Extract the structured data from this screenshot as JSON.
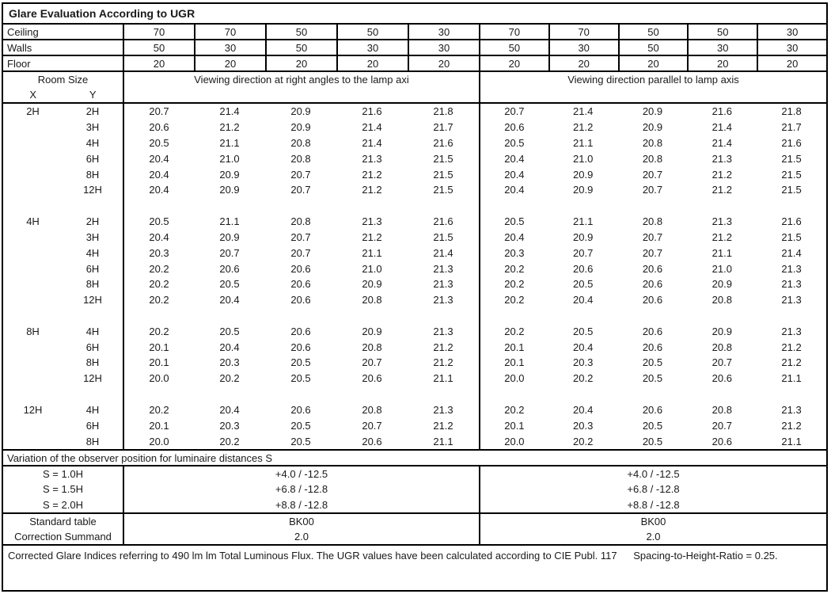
{
  "title": "Glare Evaluation According to UGR",
  "reflectance": {
    "rows": [
      {
        "label": "Ceiling",
        "values": [
          "70",
          "70",
          "50",
          "50",
          "30",
          "70",
          "70",
          "50",
          "50",
          "30"
        ]
      },
      {
        "label": "Walls",
        "values": [
          "50",
          "30",
          "50",
          "30",
          "30",
          "50",
          "30",
          "50",
          "30",
          "30"
        ]
      },
      {
        "label": "Floor",
        "values": [
          "20",
          "20",
          "20",
          "20",
          "20",
          "20",
          "20",
          "20",
          "20",
          "20"
        ]
      }
    ]
  },
  "header": {
    "room_size_label": "Room Size",
    "x_label": "X",
    "y_label": "Y",
    "left_title": "Viewing direction at right angles to the lamp axi",
    "right_title": "Viewing direction parallel to lamp axis"
  },
  "ugr_table": {
    "blocks": [
      {
        "x": "2H",
        "rows": [
          {
            "y": "2H",
            "left": [
              "20.7",
              "21.4",
              "20.9",
              "21.6",
              "21.8"
            ],
            "right": [
              "20.7",
              "21.4",
              "20.9",
              "21.6",
              "21.8"
            ]
          },
          {
            "y": "3H",
            "left": [
              "20.6",
              "21.2",
              "20.9",
              "21.4",
              "21.7"
            ],
            "right": [
              "20.6",
              "21.2",
              "20.9",
              "21.4",
              "21.7"
            ]
          },
          {
            "y": "4H",
            "left": [
              "20.5",
              "21.1",
              "20.8",
              "21.4",
              "21.6"
            ],
            "right": [
              "20.5",
              "21.1",
              "20.8",
              "21.4",
              "21.6"
            ]
          },
          {
            "y": "6H",
            "left": [
              "20.4",
              "21.0",
              "20.8",
              "21.3",
              "21.5"
            ],
            "right": [
              "20.4",
              "21.0",
              "20.8",
              "21.3",
              "21.5"
            ]
          },
          {
            "y": "8H",
            "left": [
              "20.4",
              "20.9",
              "20.7",
              "21.2",
              "21.5"
            ],
            "right": [
              "20.4",
              "20.9",
              "20.7",
              "21.2",
              "21.5"
            ]
          },
          {
            "y": "12H",
            "left": [
              "20.4",
              "20.9",
              "20.7",
              "21.2",
              "21.5"
            ],
            "right": [
              "20.4",
              "20.9",
              "20.7",
              "21.2",
              "21.5"
            ]
          }
        ]
      },
      {
        "x": "4H",
        "rows": [
          {
            "y": "2H",
            "left": [
              "20.5",
              "21.1",
              "20.8",
              "21.3",
              "21.6"
            ],
            "right": [
              "20.5",
              "21.1",
              "20.8",
              "21.3",
              "21.6"
            ]
          },
          {
            "y": "3H",
            "left": [
              "20.4",
              "20.9",
              "20.7",
              "21.2",
              "21.5"
            ],
            "right": [
              "20.4",
              "20.9",
              "20.7",
              "21.2",
              "21.5"
            ]
          },
          {
            "y": "4H",
            "left": [
              "20.3",
              "20.7",
              "20.7",
              "21.1",
              "21.4"
            ],
            "right": [
              "20.3",
              "20.7",
              "20.7",
              "21.1",
              "21.4"
            ]
          },
          {
            "y": "6H",
            "left": [
              "20.2",
              "20.6",
              "20.6",
              "21.0",
              "21.3"
            ],
            "right": [
              "20.2",
              "20.6",
              "20.6",
              "21.0",
              "21.3"
            ]
          },
          {
            "y": "8H",
            "left": [
              "20.2",
              "20.5",
              "20.6",
              "20.9",
              "21.3"
            ],
            "right": [
              "20.2",
              "20.5",
              "20.6",
              "20.9",
              "21.3"
            ]
          },
          {
            "y": "12H",
            "left": [
              "20.2",
              "20.4",
              "20.6",
              "20.8",
              "21.3"
            ],
            "right": [
              "20.2",
              "20.4",
              "20.6",
              "20.8",
              "21.3"
            ]
          }
        ]
      },
      {
        "x": "8H",
        "rows": [
          {
            "y": "4H",
            "left": [
              "20.2",
              "20.5",
              "20.6",
              "20.9",
              "21.3"
            ],
            "right": [
              "20.2",
              "20.5",
              "20.6",
              "20.9",
              "21.3"
            ]
          },
          {
            "y": "6H",
            "left": [
              "20.1",
              "20.4",
              "20.6",
              "20.8",
              "21.2"
            ],
            "right": [
              "20.1",
              "20.4",
              "20.6",
              "20.8",
              "21.2"
            ]
          },
          {
            "y": "8H",
            "left": [
              "20.1",
              "20.3",
              "20.5",
              "20.7",
              "21.2"
            ],
            "right": [
              "20.1",
              "20.3",
              "20.5",
              "20.7",
              "21.2"
            ]
          },
          {
            "y": "12H",
            "left": [
              "20.0",
              "20.2",
              "20.5",
              "20.6",
              "21.1"
            ],
            "right": [
              "20.0",
              "20.2",
              "20.5",
              "20.6",
              "21.1"
            ]
          }
        ]
      },
      {
        "x": "12H",
        "rows": [
          {
            "y": "4H",
            "left": [
              "20.2",
              "20.4",
              "20.6",
              "20.8",
              "21.3"
            ],
            "right": [
              "20.2",
              "20.4",
              "20.6",
              "20.8",
              "21.3"
            ]
          },
          {
            "y": "6H",
            "left": [
              "20.1",
              "20.3",
              "20.5",
              "20.7",
              "21.2"
            ],
            "right": [
              "20.1",
              "20.3",
              "20.5",
              "20.7",
              "21.2"
            ]
          },
          {
            "y": "8H",
            "left": [
              "20.0",
              "20.2",
              "20.5",
              "20.6",
              "21.1"
            ],
            "right": [
              "20.0",
              "20.2",
              "20.5",
              "20.6",
              "21.1"
            ]
          }
        ]
      }
    ]
  },
  "variation": {
    "title": "Variation of the observer position for luminaire distances S",
    "rows": [
      {
        "label": "S = 1.0H",
        "left": "+4.0 / -12.5",
        "right": "+4.0 / -12.5"
      },
      {
        "label": "S = 1.5H",
        "left": "+6.8 / -12.8",
        "right": "+6.8 / -12.8"
      },
      {
        "label": "S = 2.0H",
        "left": "+8.8 / -12.8",
        "right": "+8.8 / -12.8"
      }
    ]
  },
  "summary": {
    "rows": [
      {
        "label": "Standard table",
        "left": "BK00",
        "right": "BK00"
      },
      {
        "label": "Correction Summand",
        "left": "2.0",
        "right": "2.0"
      }
    ]
  },
  "footer": {
    "text_main": "Corrected Glare Indices referring to 490 lm lm Total Luminous Flux. The UGR values have been calculated according to CIE Publ. 117",
    "text_ratio": "Spacing-to-Height-Ratio = 0.25."
  }
}
